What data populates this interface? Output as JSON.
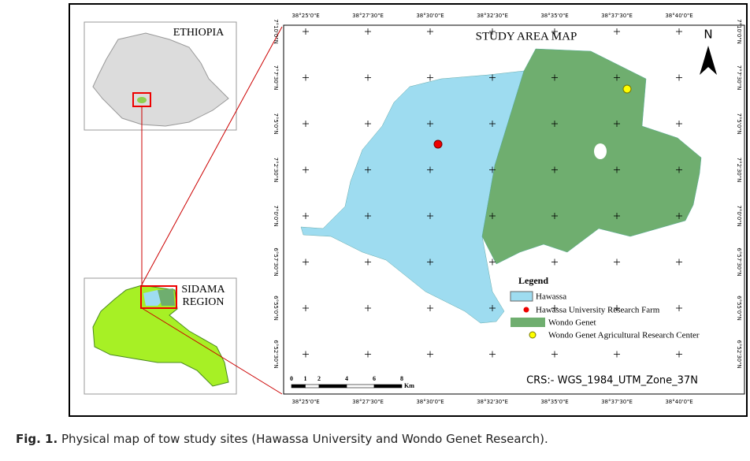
{
  "figure": {
    "inset_country": "ETHIOPIA",
    "inset_region": [
      "SIDAMA",
      "REGION"
    ],
    "title": "STUDY AREA MAP",
    "north": "N",
    "legend": {
      "title": "Legend",
      "items": [
        "Hawassa",
        "Hawassa University Research Farm",
        "Wondo Genet",
        "Wondo Genet Agricultural Research Center"
      ]
    },
    "scale": {
      "ticks": [
        0,
        1,
        2,
        4,
        6,
        8
      ],
      "unit": "Km"
    },
    "crs": "CRS:- WGS_1984_UTM_Zone_37N",
    "lon_labels": [
      "38°25'0\"E",
      "38°27'30\"E",
      "38°30'0\"E",
      "38°32'30\"E",
      "38°35'0\"E",
      "38°37'30\"E",
      "38°40'0\"E"
    ],
    "lat_labels": [
      "7°10'0\"N",
      "7°7'30\"N",
      "7°5'0\"N",
      "7°2'30\"N",
      "7°0'0\"N",
      "6°57'30\"N",
      "6°55'0\"N",
      "6°52'30\"N"
    ]
  },
  "caption": {
    "label": "Fig. 1.",
    "text": "Physical map of tow study sites (Hawassa University and Wondo Genet Research)."
  }
}
